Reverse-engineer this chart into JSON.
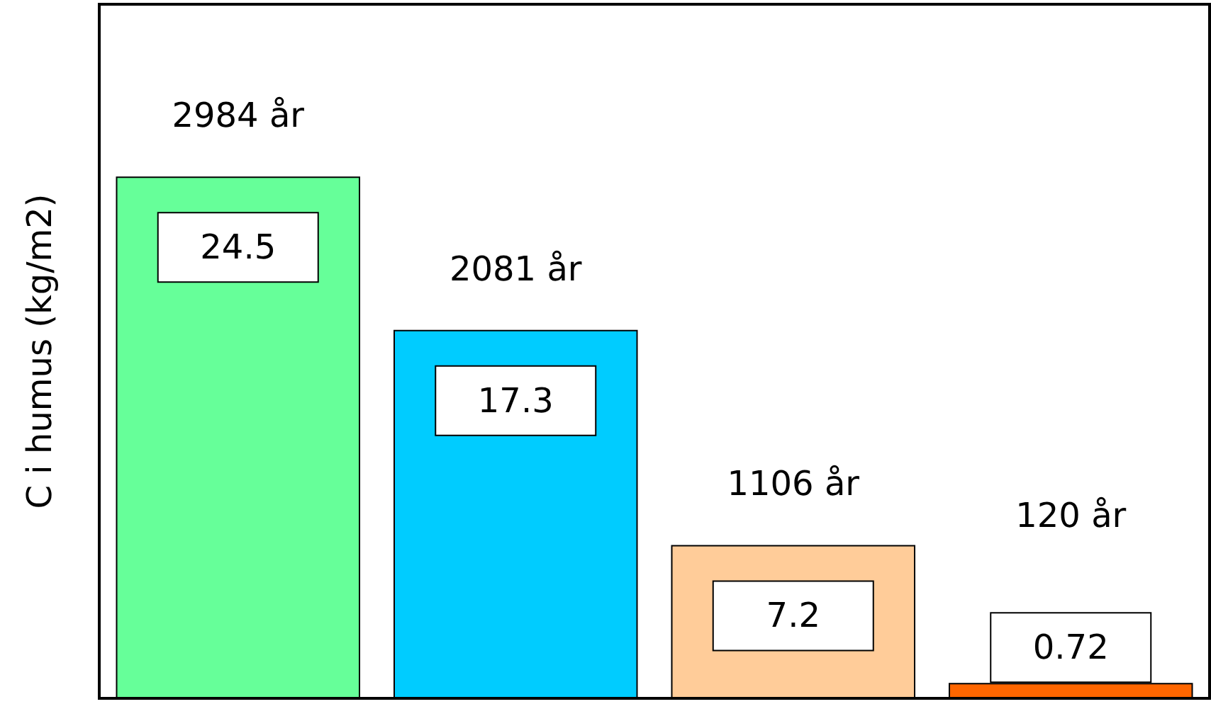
{
  "chart_data": {
    "type": "bar",
    "ylabel": "C i humus (kg/m2)",
    "categories": [
      "2984 år",
      "2081 år",
      "1106 år",
      "120 år"
    ],
    "values": [
      24.5,
      17.3,
      7.2,
      0.72
    ],
    "colors": [
      "#66ff99",
      "#00ccff",
      "#ffcc99",
      "#ff6600"
    ],
    "data_labels": true,
    "grid": false
  }
}
